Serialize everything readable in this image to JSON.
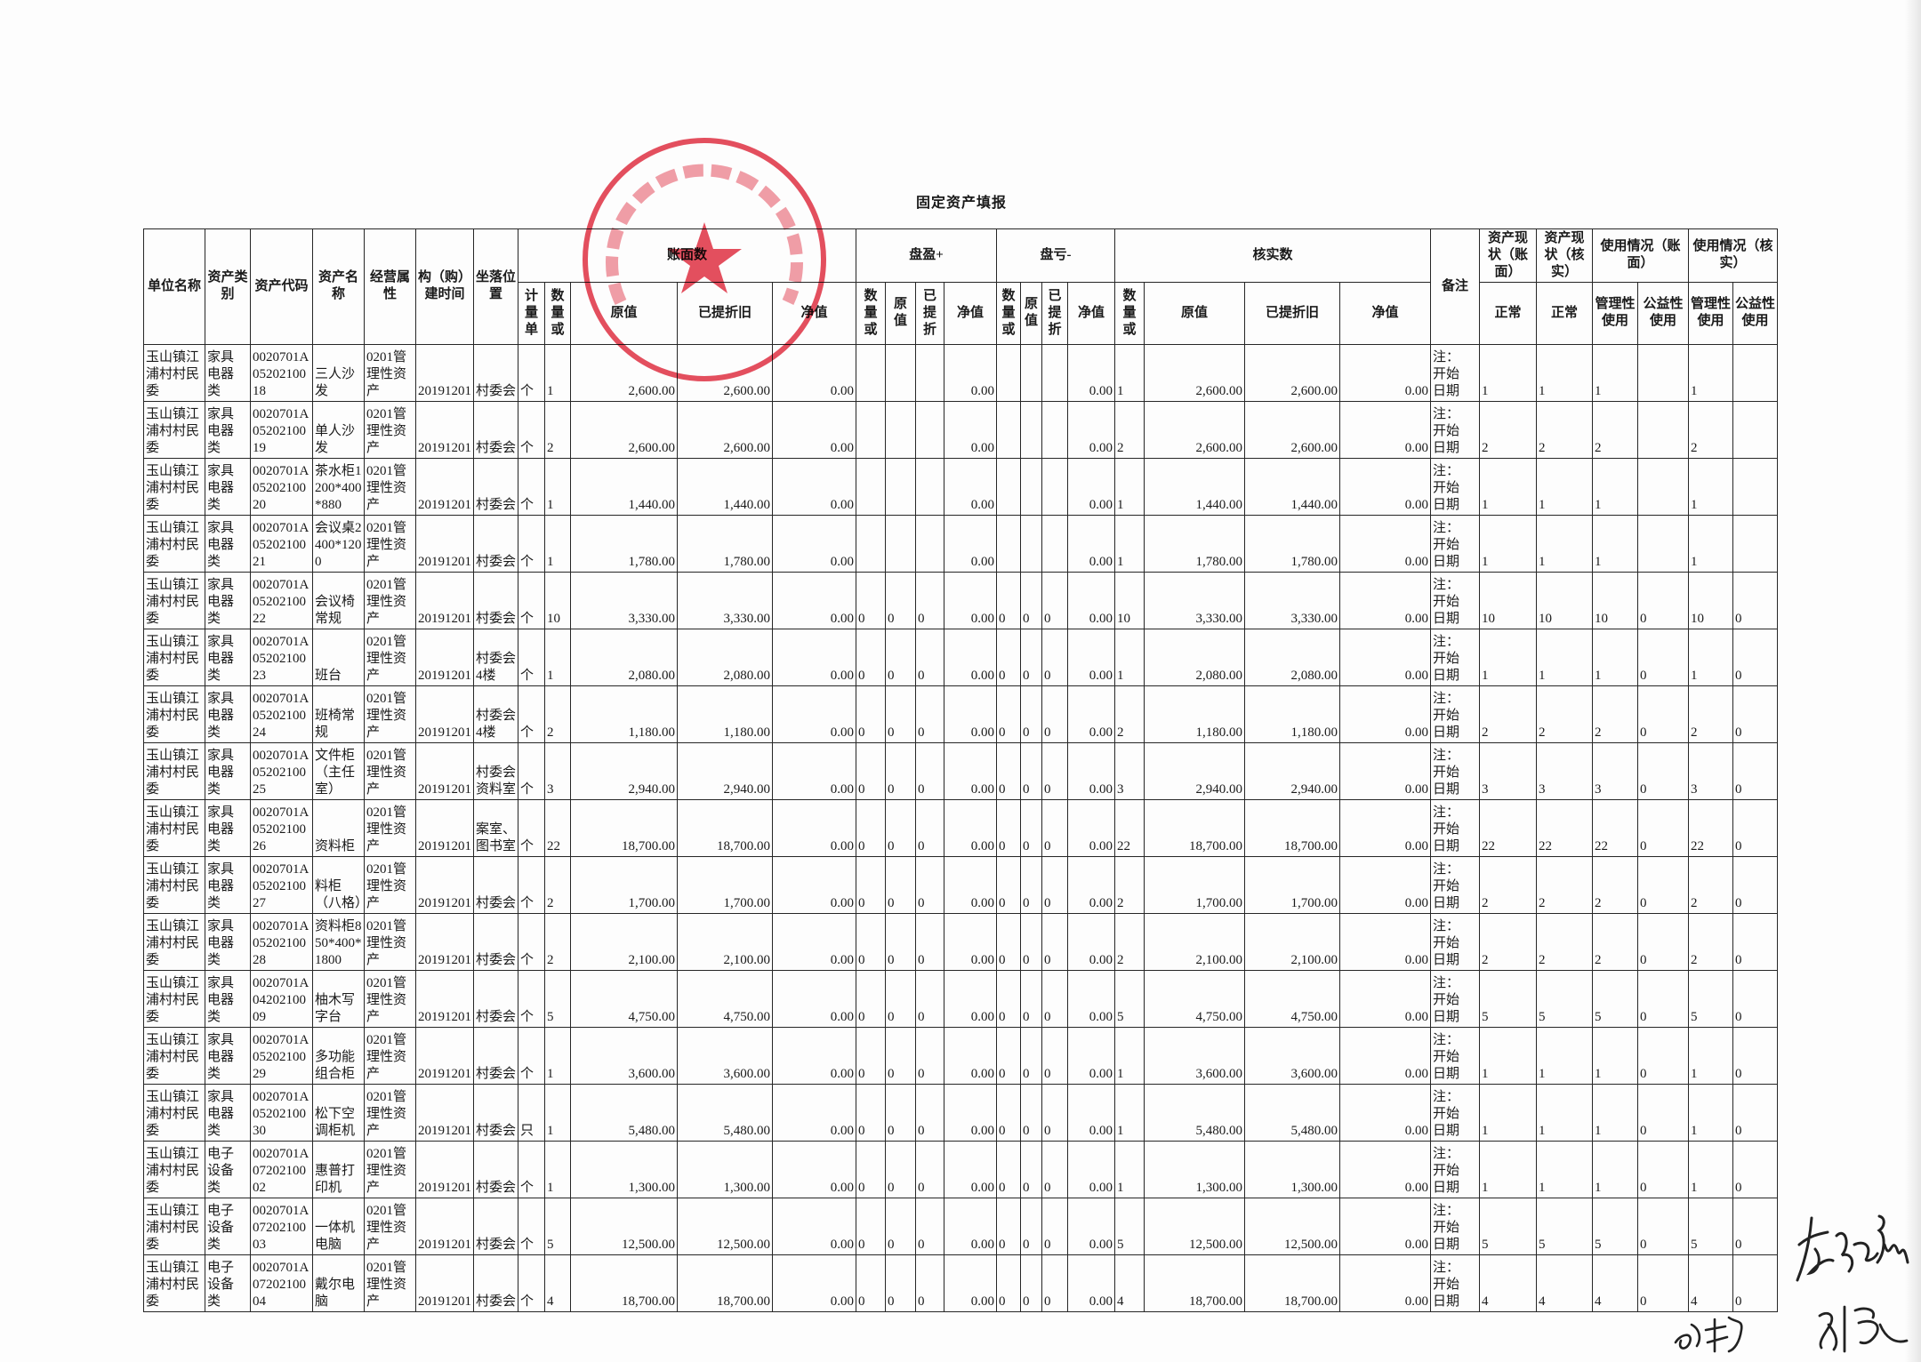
{
  "title": "固定资产填报",
  "stamp": {
    "text": "昆山市玉山镇江浦村村民委员会",
    "color": "#e0283c"
  },
  "header": {
    "unit": "单位名称",
    "category": "资产类别",
    "code": "资产代码",
    "name": "资产名称",
    "attribute": "经营属性",
    "build_time": "构（购）建时间",
    "location": "坐落位置",
    "book": "账面数",
    "surplus": "盘盈+",
    "loss": "盘亏-",
    "verified": "核实数",
    "note": "备注",
    "status_book": "资产现状（账面）",
    "status_verified": "资产现状（核实）",
    "use_book": "使用情况（账面）",
    "use_verified": "使用情况（核实）",
    "measure_unit": "计量单",
    "qty": "数量或",
    "orig": "原值",
    "depr_full": "已提折旧",
    "depr_short": "已提折",
    "net": "净值",
    "normal": "正常",
    "mgmt_use": "管理性使用",
    "public_use": "公益性使用"
  },
  "rows": [
    {
      "unit": "玉山镇江浦村村民委",
      "category": "家具电器类",
      "code": "0020701A0520210018",
      "name": "三人沙发",
      "attribute": "0201管理性资产",
      "time": "20191201",
      "location": "村委会",
      "mu": "个",
      "qty": "1",
      "orig": "2,600.00",
      "depr": "2,600.00",
      "net": "0.00",
      "sp": [
        "",
        "",
        "",
        "0.00"
      ],
      "ls": [
        "",
        "",
        "",
        "0.00"
      ],
      "vf": [
        "1",
        "2,600.00",
        "2,600.00",
        "0.00"
      ],
      "note": "注：开始日期",
      "st_b": "1",
      "st_v": "1",
      "ub_m": "1",
      "ub_p": "",
      "uv_m": "1",
      "uv_p": ""
    },
    {
      "unit": "玉山镇江浦村村民委",
      "category": "家具电器类",
      "code": "0020701A0520210019",
      "name": "单人沙发",
      "attribute": "0201管理性资产",
      "time": "20191201",
      "location": "村委会",
      "mu": "个",
      "qty": "2",
      "orig": "2,600.00",
      "depr": "2,600.00",
      "net": "0.00",
      "sp": [
        "",
        "",
        "",
        "0.00"
      ],
      "ls": [
        "",
        "",
        "",
        "0.00"
      ],
      "vf": [
        "2",
        "2,600.00",
        "2,600.00",
        "0.00"
      ],
      "note": "注：开始日期",
      "st_b": "2",
      "st_v": "2",
      "ub_m": "2",
      "ub_p": "",
      "uv_m": "2",
      "uv_p": ""
    },
    {
      "unit": "玉山镇江浦村村民委",
      "category": "家具电器类",
      "code": "0020701A0520210020",
      "name": "茶水柜1200*400*880",
      "attribute": "0201管理性资产",
      "time": "20191201",
      "location": "村委会",
      "mu": "个",
      "qty": "1",
      "orig": "1,440.00",
      "depr": "1,440.00",
      "net": "0.00",
      "sp": [
        "",
        "",
        "",
        "0.00"
      ],
      "ls": [
        "",
        "",
        "",
        "0.00"
      ],
      "vf": [
        "1",
        "1,440.00",
        "1,440.00",
        "0.00"
      ],
      "note": "注：开始日期",
      "st_b": "1",
      "st_v": "1",
      "ub_m": "1",
      "ub_p": "",
      "uv_m": "1",
      "uv_p": ""
    },
    {
      "unit": "玉山镇江浦村村民委",
      "category": "家具电器类",
      "code": "0020701A0520210021",
      "name": "会议桌2400*1200",
      "attribute": "0201管理性资产",
      "time": "20191201",
      "location": "村委会",
      "mu": "个",
      "qty": "1",
      "orig": "1,780.00",
      "depr": "1,780.00",
      "net": "0.00",
      "sp": [
        "",
        "",
        "",
        "0.00"
      ],
      "ls": [
        "",
        "",
        "",
        "0.00"
      ],
      "vf": [
        "1",
        "1,780.00",
        "1,780.00",
        "0.00"
      ],
      "note": "注：开始日期",
      "st_b": "1",
      "st_v": "1",
      "ub_m": "1",
      "ub_p": "",
      "uv_m": "1",
      "uv_p": ""
    },
    {
      "unit": "玉山镇江浦村村民委",
      "category": "家具电器类",
      "code": "0020701A0520210022",
      "name": "会议椅常规",
      "attribute": "0201管理性资产",
      "time": "20191201",
      "location": "村委会",
      "mu": "个",
      "qty": "10",
      "orig": "3,330.00",
      "depr": "3,330.00",
      "net": "0.00",
      "sp": [
        "0",
        "0",
        "0",
        "0.00"
      ],
      "ls": [
        "0",
        "0",
        "0",
        "0.00"
      ],
      "vf": [
        "10",
        "3,330.00",
        "3,330.00",
        "0.00"
      ],
      "note": "注：开始日期",
      "st_b": "10",
      "st_v": "10",
      "ub_m": "10",
      "ub_p": "0",
      "uv_m": "10",
      "uv_p": "0"
    },
    {
      "unit": "玉山镇江浦村村民委",
      "category": "家具电器类",
      "code": "0020701A0520210023",
      "name": "班台",
      "attribute": "0201管理性资产",
      "time": "20191201",
      "location": "村委会4楼",
      "mu": "个",
      "qty": "1",
      "orig": "2,080.00",
      "depr": "2,080.00",
      "net": "0.00",
      "sp": [
        "0",
        "0",
        "0",
        "0.00"
      ],
      "ls": [
        "0",
        "0",
        "0",
        "0.00"
      ],
      "vf": [
        "1",
        "2,080.00",
        "2,080.00",
        "0.00"
      ],
      "note": "注：开始日期",
      "st_b": "1",
      "st_v": "1",
      "ub_m": "1",
      "ub_p": "0",
      "uv_m": "1",
      "uv_p": "0"
    },
    {
      "unit": "玉山镇江浦村村民委",
      "category": "家具电器类",
      "code": "0020701A0520210024",
      "name": "班椅常规",
      "attribute": "0201管理性资产",
      "time": "20191201",
      "location": "村委会4楼",
      "mu": "个",
      "qty": "2",
      "orig": "1,180.00",
      "depr": "1,180.00",
      "net": "0.00",
      "sp": [
        "0",
        "0",
        "0",
        "0.00"
      ],
      "ls": [
        "0",
        "0",
        "0",
        "0.00"
      ],
      "vf": [
        "2",
        "1,180.00",
        "1,180.00",
        "0.00"
      ],
      "note": "注：开始日期",
      "st_b": "2",
      "st_v": "2",
      "ub_m": "2",
      "ub_p": "0",
      "uv_m": "2",
      "uv_p": "0"
    },
    {
      "unit": "玉山镇江浦村村民委",
      "category": "家具电器类",
      "code": "0020701A0520210025",
      "name": "文件柜（主任室）",
      "attribute": "0201管理性资产",
      "time": "20191201",
      "location": "村委会资料室",
      "mu": "个",
      "qty": "3",
      "orig": "2,940.00",
      "depr": "2,940.00",
      "net": "0.00",
      "sp": [
        "0",
        "0",
        "0",
        "0.00"
      ],
      "ls": [
        "0",
        "0",
        "0",
        "0.00"
      ],
      "vf": [
        "3",
        "2,940.00",
        "2,940.00",
        "0.00"
      ],
      "note": "注：开始日期",
      "st_b": "3",
      "st_v": "3",
      "ub_m": "3",
      "ub_p": "0",
      "uv_m": "3",
      "uv_p": "0"
    },
    {
      "unit": "玉山镇江浦村村民委",
      "category": "家具电器类",
      "code": "0020701A0520210026",
      "name": "资料柜",
      "attribute": "0201管理性资产",
      "time": "20191201",
      "location": "案室、图书室",
      "mu": "个",
      "qty": "22",
      "orig": "18,700.00",
      "depr": "18,700.00",
      "net": "0.00",
      "sp": [
        "0",
        "0",
        "0",
        "0.00"
      ],
      "ls": [
        "0",
        "0",
        "0",
        "0.00"
      ],
      "vf": [
        "22",
        "18,700.00",
        "18,700.00",
        "0.00"
      ],
      "note": "注：开始日期",
      "st_b": "22",
      "st_v": "22",
      "ub_m": "22",
      "ub_p": "0",
      "uv_m": "22",
      "uv_p": "0"
    },
    {
      "unit": "玉山镇江浦村村民委",
      "category": "家具电器类",
      "code": "0020701A0520210027",
      "name": "料柜（八格）",
      "attribute": "0201管理性资产",
      "time": "20191201",
      "location": "村委会",
      "mu": "个",
      "qty": "2",
      "orig": "1,700.00",
      "depr": "1,700.00",
      "net": "0.00",
      "sp": [
        "0",
        "0",
        "0",
        "0.00"
      ],
      "ls": [
        "0",
        "0",
        "0",
        "0.00"
      ],
      "vf": [
        "2",
        "1,700.00",
        "1,700.00",
        "0.00"
      ],
      "note": "注：开始日期",
      "st_b": "2",
      "st_v": "2",
      "ub_m": "2",
      "ub_p": "0",
      "uv_m": "2",
      "uv_p": "0"
    },
    {
      "unit": "玉山镇江浦村村民委",
      "category": "家具电器类",
      "code": "0020701A0520210028",
      "name": "资料柜850*400*1800",
      "attribute": "0201管理性资产",
      "time": "20191201",
      "location": "村委会",
      "mu": "个",
      "qty": "2",
      "orig": "2,100.00",
      "depr": "2,100.00",
      "net": "0.00",
      "sp": [
        "0",
        "0",
        "0",
        "0.00"
      ],
      "ls": [
        "0",
        "0",
        "0",
        "0.00"
      ],
      "vf": [
        "2",
        "2,100.00",
        "2,100.00",
        "0.00"
      ],
      "note": "注：开始日期",
      "st_b": "2",
      "st_v": "2",
      "ub_m": "2",
      "ub_p": "0",
      "uv_m": "2",
      "uv_p": "0"
    },
    {
      "unit": "玉山镇江浦村村民委",
      "category": "家具电器类",
      "code": "0020701A0420210009",
      "name": "柚木写字台",
      "attribute": "0201管理性资产",
      "time": "20191201",
      "location": "村委会",
      "mu": "个",
      "qty": "5",
      "orig": "4,750.00",
      "depr": "4,750.00",
      "net": "0.00",
      "sp": [
        "0",
        "0",
        "0",
        "0.00"
      ],
      "ls": [
        "0",
        "0",
        "0",
        "0.00"
      ],
      "vf": [
        "5",
        "4,750.00",
        "4,750.00",
        "0.00"
      ],
      "note": "注：开始日期",
      "st_b": "5",
      "st_v": "5",
      "ub_m": "5",
      "ub_p": "0",
      "uv_m": "5",
      "uv_p": "0"
    },
    {
      "unit": "玉山镇江浦村村民委",
      "category": "家具电器类",
      "code": "0020701A0520210029",
      "name": "多功能组合柜",
      "attribute": "0201管理性资产",
      "time": "20191201",
      "location": "村委会",
      "mu": "个",
      "qty": "1",
      "orig": "3,600.00",
      "depr": "3,600.00",
      "net": "0.00",
      "sp": [
        "0",
        "0",
        "0",
        "0.00"
      ],
      "ls": [
        "0",
        "0",
        "0",
        "0.00"
      ],
      "vf": [
        "1",
        "3,600.00",
        "3,600.00",
        "0.00"
      ],
      "note": "注：开始日期",
      "st_b": "1",
      "st_v": "1",
      "ub_m": "1",
      "ub_p": "0",
      "uv_m": "1",
      "uv_p": "0"
    },
    {
      "unit": "玉山镇江浦村村民委",
      "category": "家具电器类",
      "code": "0020701A0520210030",
      "name": "松下空调柜机",
      "attribute": "0201管理性资产",
      "time": "20191201",
      "location": "村委会",
      "mu": "只",
      "qty": "1",
      "orig": "5,480.00",
      "depr": "5,480.00",
      "net": "0.00",
      "sp": [
        "0",
        "0",
        "0",
        "0.00"
      ],
      "ls": [
        "0",
        "0",
        "0",
        "0.00"
      ],
      "vf": [
        "1",
        "5,480.00",
        "5,480.00",
        "0.00"
      ],
      "note": "注：开始日期",
      "st_b": "1",
      "st_v": "1",
      "ub_m": "1",
      "ub_p": "0",
      "uv_m": "1",
      "uv_p": "0"
    },
    {
      "unit": "玉山镇江浦村村民委",
      "category": "电子设备类",
      "code": "0020701A0720210002",
      "name": "惠普打印机",
      "attribute": "0201管理性资产",
      "time": "20191201",
      "location": "村委会",
      "mu": "个",
      "qty": "1",
      "orig": "1,300.00",
      "depr": "1,300.00",
      "net": "0.00",
      "sp": [
        "0",
        "0",
        "0",
        "0.00"
      ],
      "ls": [
        "0",
        "0",
        "0",
        "0.00"
      ],
      "vf": [
        "1",
        "1,300.00",
        "1,300.00",
        "0.00"
      ],
      "note": "注：开始日期",
      "st_b": "1",
      "st_v": "1",
      "ub_m": "1",
      "ub_p": "0",
      "uv_m": "1",
      "uv_p": "0"
    },
    {
      "unit": "玉山镇江浦村村民委",
      "category": "电子设备类",
      "code": "0020701A0720210003",
      "name": "一体机电脑",
      "attribute": "0201管理性资产",
      "time": "20191201",
      "location": "村委会",
      "mu": "个",
      "qty": "5",
      "orig": "12,500.00",
      "depr": "12,500.00",
      "net": "0.00",
      "sp": [
        "0",
        "0",
        "0",
        "0.00"
      ],
      "ls": [
        "0",
        "0",
        "0",
        "0.00"
      ],
      "vf": [
        "5",
        "12,500.00",
        "12,500.00",
        "0.00"
      ],
      "note": "注：开始日期",
      "st_b": "5",
      "st_v": "5",
      "ub_m": "5",
      "ub_p": "0",
      "uv_m": "5",
      "uv_p": "0"
    },
    {
      "unit": "玉山镇江浦村村民委",
      "category": "电子设备类",
      "code": "0020701A0720210004",
      "name": "戴尔电脑",
      "attribute": "0201管理性资产",
      "time": "20191201",
      "location": "村委会",
      "mu": "个",
      "qty": "4",
      "orig": "18,700.00",
      "depr": "18,700.00",
      "net": "0.00",
      "sp": [
        "0",
        "0",
        "0",
        "0.00"
      ],
      "ls": [
        "0",
        "0",
        "0",
        "0.00"
      ],
      "vf": [
        "4",
        "18,700.00",
        "18,700.00",
        "0.00"
      ],
      "note": "注：开始日期",
      "st_b": "4",
      "st_v": "4",
      "ub_m": "4",
      "ub_p": "0",
      "uv_m": "4",
      "uv_p": "0"
    }
  ]
}
